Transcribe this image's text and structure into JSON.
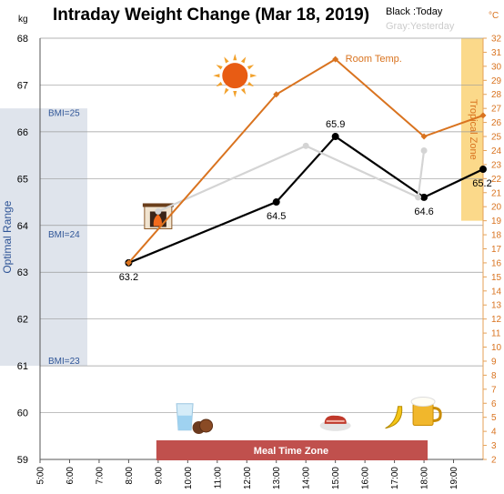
{
  "chart_data": {
    "type": "line",
    "title": "Intraday Weight Change (Mar 18, 2019)",
    "legend": {
      "today": "Black :Today",
      "yesterday": "Gray:Yesterday"
    },
    "y_left": {
      "unit": "kg",
      "min": 59,
      "max": 68,
      "ticks": [
        "59",
        "60",
        "61",
        "62",
        "63",
        "64",
        "65",
        "66",
        "67",
        "68"
      ]
    },
    "y_right": {
      "unit": "°C",
      "min": 2,
      "max": 32,
      "ticks": [
        "2",
        "3",
        "4",
        "5",
        "6",
        "7",
        "8",
        "9",
        "10",
        "11",
        "12",
        "13",
        "14",
        "15",
        "16",
        "17",
        "18",
        "19",
        "20",
        "21",
        "22",
        "23",
        "24",
        "25",
        "26",
        "27",
        "28",
        "29",
        "30",
        "31",
        "32"
      ]
    },
    "x": {
      "min_hour": 5,
      "max_hour": 20,
      "tick_hours": [
        5,
        6,
        7,
        8,
        9,
        10,
        11,
        12,
        13,
        14,
        15,
        16,
        17,
        18,
        19
      ],
      "tick_labels": [
        "5:00",
        "6:00",
        "7:00",
        "8:00",
        "9:00",
        "10:00",
        "11:00",
        "12:00",
        "13:00",
        "14:00",
        "15:00",
        "16:00",
        "17:00",
        "18:00",
        "19:00"
      ]
    },
    "optimal_range": {
      "label": "Optimal Range",
      "kg_min": 61,
      "kg_max": 66.5,
      "bmi_labels": [
        {
          "text": "BMI=25",
          "kg": 66.4
        },
        {
          "text": "BMI=24",
          "kg": 63.8
        },
        {
          "text": "BMI=23",
          "kg": 61.1
        }
      ]
    },
    "tropical_zone": {
      "label": "Tropical Zone",
      "temp_min": 19,
      "temp_max": 32
    },
    "meal_zone": {
      "label": "Meal Time Zone",
      "start_hour": 9,
      "end_hour": 18
    },
    "series": [
      {
        "name": "Today",
        "color": "#000000",
        "points": [
          {
            "x": 8,
            "y": 63.2,
            "label": "63.2"
          },
          {
            "x": 13,
            "y": 64.5,
            "label": "64.5"
          },
          {
            "x": 15,
            "y": 65.9,
            "label": "65.9"
          },
          {
            "x": 18,
            "y": 64.6,
            "label": "64.6"
          },
          {
            "x": 20,
            "y": 65.2,
            "label": "65.2"
          }
        ]
      },
      {
        "name": "Yesterday",
        "color": "#d4d4d4",
        "points": [
          {
            "x": 9,
            "y": 64.3
          },
          {
            "x": 14,
            "y": 65.7
          },
          {
            "x": 17.8,
            "y": 64.6
          },
          {
            "x": 18,
            "y": 65.6
          }
        ]
      },
      {
        "name": "Room Temp.",
        "axis": "right",
        "color": "#d9731f",
        "points": [
          {
            "x": 8,
            "y": 16
          },
          {
            "x": 13,
            "y": 28
          },
          {
            "x": 15,
            "y": 30.5
          },
          {
            "x": 18,
            "y": 25
          },
          {
            "x": 20,
            "y": 26.5
          }
        ]
      }
    ],
    "room_temp_label": "Room Temp.",
    "icons": [
      {
        "name": "sun-icon",
        "x": 11.6,
        "kg": 67.2
      },
      {
        "name": "fireplace-icon",
        "x": 9,
        "kg": 64.2
      },
      {
        "name": "water-glass-icon",
        "x": 9.9,
        "kg": 59.9
      },
      {
        "name": "cookies-icon",
        "x": 10.5,
        "kg": 59.7
      },
      {
        "name": "steak-icon",
        "x": 15,
        "kg": 59.8
      },
      {
        "name": "banana-icon",
        "x": 17,
        "kg": 59.9
      },
      {
        "name": "beer-icon",
        "x": 18,
        "kg": 60.0
      }
    ]
  }
}
